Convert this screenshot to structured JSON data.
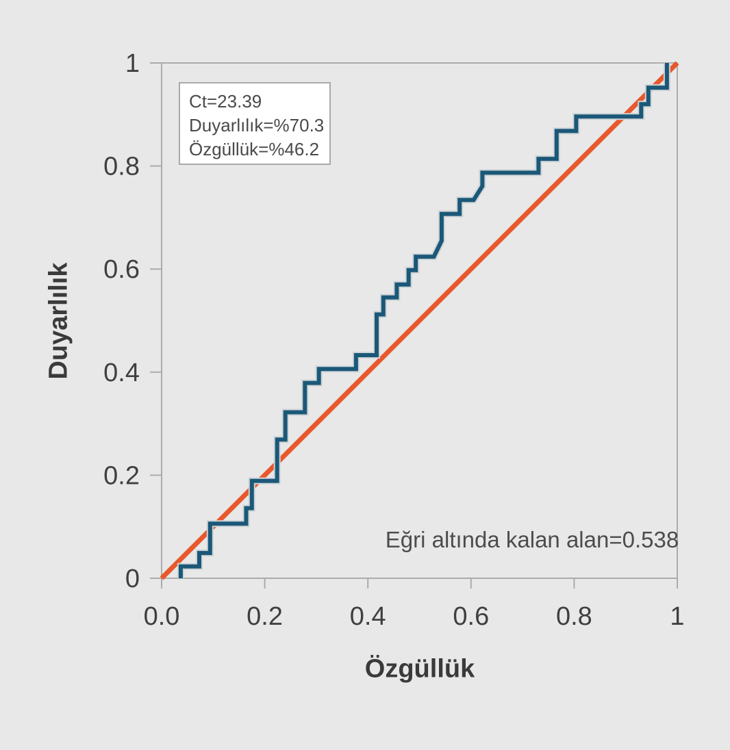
{
  "chart_data": {
    "type": "line",
    "subtype": "roc-step-curve",
    "title": "",
    "xlabel": "Özgüllük",
    "ylabel": "Duyarlılık",
    "xlim": [
      0,
      1
    ],
    "ylim": [
      0,
      1
    ],
    "grid": false,
    "legend": "none",
    "background_color": "#e8e8e8",
    "frame_color": "#ababab",
    "tick_label_color": "#3f3f3f",
    "x_ticks": {
      "values": [
        0,
        0.2,
        0.4,
        0.6,
        0.8,
        1
      ],
      "labels": [
        "0.0",
        "0.2",
        "0.4",
        "0.6",
        "0.8",
        "1"
      ]
    },
    "y_ticks": {
      "values": [
        0,
        0.2,
        0.4,
        0.6,
        0.8,
        1
      ],
      "labels": [
        "0",
        "0.2",
        "0.4",
        "0.6",
        "0.8",
        "1"
      ]
    },
    "series": [
      {
        "name": "roc-curve",
        "color": "#1b5878",
        "casing_color": "#cdd3d6",
        "width": 6,
        "points": [
          [
            0.037,
            0.0
          ],
          [
            0.037,
            0.023
          ],
          [
            0.073,
            0.023
          ],
          [
            0.073,
            0.049
          ],
          [
            0.094,
            0.049
          ],
          [
            0.094,
            0.106
          ],
          [
            0.164,
            0.106
          ],
          [
            0.164,
            0.136
          ],
          [
            0.175,
            0.136
          ],
          [
            0.175,
            0.189
          ],
          [
            0.224,
            0.189
          ],
          [
            0.224,
            0.269
          ],
          [
            0.24,
            0.269
          ],
          [
            0.24,
            0.322
          ],
          [
            0.278,
            0.322
          ],
          [
            0.278,
            0.379
          ],
          [
            0.305,
            0.379
          ],
          [
            0.305,
            0.406
          ],
          [
            0.377,
            0.406
          ],
          [
            0.377,
            0.433
          ],
          [
            0.417,
            0.433
          ],
          [
            0.417,
            0.512
          ],
          [
            0.43,
            0.512
          ],
          [
            0.43,
            0.545
          ],
          [
            0.456,
            0.545
          ],
          [
            0.456,
            0.57
          ],
          [
            0.479,
            0.57
          ],
          [
            0.479,
            0.598
          ],
          [
            0.493,
            0.598
          ],
          [
            0.493,
            0.624
          ],
          [
            0.528,
            0.624
          ],
          [
            0.543,
            0.655
          ],
          [
            0.543,
            0.707
          ],
          [
            0.578,
            0.707
          ],
          [
            0.578,
            0.734
          ],
          [
            0.605,
            0.734
          ],
          [
            0.622,
            0.761
          ],
          [
            0.622,
            0.787
          ],
          [
            0.731,
            0.787
          ],
          [
            0.731,
            0.814
          ],
          [
            0.766,
            0.814
          ],
          [
            0.766,
            0.868
          ],
          [
            0.804,
            0.868
          ],
          [
            0.804,
            0.896
          ],
          [
            0.93,
            0.896
          ],
          [
            0.93,
            0.92
          ],
          [
            0.944,
            0.92
          ],
          [
            0.944,
            0.952
          ],
          [
            0.98,
            0.952
          ],
          [
            0.98,
            1.0
          ]
        ]
      },
      {
        "name": "reference-diagonal",
        "color": "#e8582c",
        "width": 7,
        "points": [
          [
            0.0,
            0.0
          ],
          [
            1.0,
            1.0
          ]
        ]
      }
    ],
    "annotation_box": {
      "lines": [
        "Ct=23.39",
        "Duyarlılık=%70.3",
        "Özgüllük=%46.2"
      ]
    },
    "auc_label": "Eğri altında kalan alan=0.538"
  }
}
